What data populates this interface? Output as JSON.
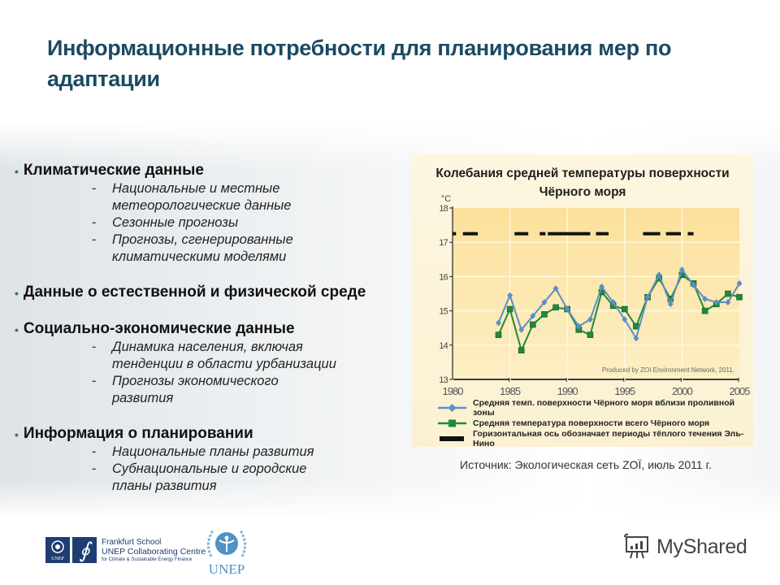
{
  "slide": {
    "title": "Информационные потребности для планирования мер по адаптации",
    "bullets": [
      {
        "heading": "Климатические данные",
        "items": [
          "Национальные и местные\nметеорологические данные",
          "Сезонные прогнозы",
          "Прогнозы, сгенерированные\nклиматическими моделями"
        ]
      },
      {
        "heading": "Данные о естественной и физической среде",
        "items": []
      },
      {
        "heading": "Социально-экономические данные",
        "items": [
          "Динамика населения, включая\nтенденции в области урбанизации",
          "Прогнозы экономического\nразвития"
        ]
      },
      {
        "heading": "Информация о планировании",
        "items": [
          "Национальные планы развития",
          "Субнациональные и городские\nпланы развития"
        ]
      }
    ],
    "bullet_glyph": "•",
    "dash_glyph": "-",
    "source": "Источник: Экологическая сеть ZOÏ, июль 2011 г.",
    "logos": {
      "frankfurt_line1": "Frankfurt School",
      "frankfurt_line2": "UNEP Collaborating Centre",
      "frankfurt_line3": "for Climate & Sustainable Energy Finance",
      "unep_small": "UNEP",
      "frankfurt_symbol": "∮",
      "unep": "UNEP",
      "myshared": "MyShared"
    }
  },
  "chart_data": {
    "type": "line",
    "title": "Колебания средней температуры поверхности Чёрного моря",
    "ylabel": "°C",
    "xlabel": "",
    "ylim": [
      13,
      18
    ],
    "xlim": [
      1980,
      2005
    ],
    "yticks": [
      13,
      14,
      15,
      16,
      17,
      18
    ],
    "xticks": [
      1980,
      1985,
      1990,
      1995,
      2000,
      2005
    ],
    "grid": true,
    "annotation": "Produced by ZOI Environment Network, 2011.",
    "x": [
      1984,
      1985,
      1986,
      1987,
      1988,
      1989,
      1990,
      1991,
      1992,
      1993,
      1994,
      1995,
      1996,
      1997,
      1998,
      1999,
      2000,
      2001,
      2002,
      2003,
      2004,
      2005
    ],
    "series": [
      {
        "name": "Средняя темп. поверхности Чёрного моря вблизи проливной зоны",
        "color": "#5b8fc7",
        "marker": "diamond",
        "values": [
          14.65,
          15.45,
          14.45,
          14.85,
          15.25,
          15.65,
          15.05,
          14.55,
          14.75,
          15.7,
          15.25,
          14.75,
          14.2,
          15.4,
          16.05,
          15.2,
          16.2,
          15.75,
          15.35,
          15.25,
          15.25,
          15.8
        ]
      },
      {
        "name": "Средняя температура поверхности всего Чёрного моря",
        "color": "#1f8a3b",
        "marker": "square",
        "values": [
          14.3,
          15.05,
          13.85,
          14.6,
          14.9,
          15.1,
          15.05,
          14.45,
          14.3,
          15.55,
          15.15,
          15.05,
          14.55,
          15.4,
          15.95,
          15.35,
          16.05,
          15.8,
          15.0,
          15.2,
          15.5,
          15.4
        ]
      }
    ],
    "el_nino": {
      "name": "Горизонтальная ось обозначает периоды тёплого течения Эль-Нино",
      "color": "#111111",
      "y": 17.25,
      "periods": [
        [
          1980,
          1980.3
        ],
        [
          1980.9,
          1982.2
        ],
        [
          1985.4,
          1986.6
        ],
        [
          1987.6,
          1988.1
        ],
        [
          1988.3,
          1992.0
        ],
        [
          1992.5,
          1993.6
        ],
        [
          1996.6,
          1998.1
        ],
        [
          1998.6,
          1999.9
        ],
        [
          2000.5,
          2001.0
        ]
      ]
    },
    "legend": [
      "Средняя темп. поверхности Чёрного моря вблизи проливной зоны",
      "Средняя температура поверхности всего Чёрного моря",
      "Горизонтальная ось обозначает периоды тёплого течения Эль-Нино"
    ]
  }
}
